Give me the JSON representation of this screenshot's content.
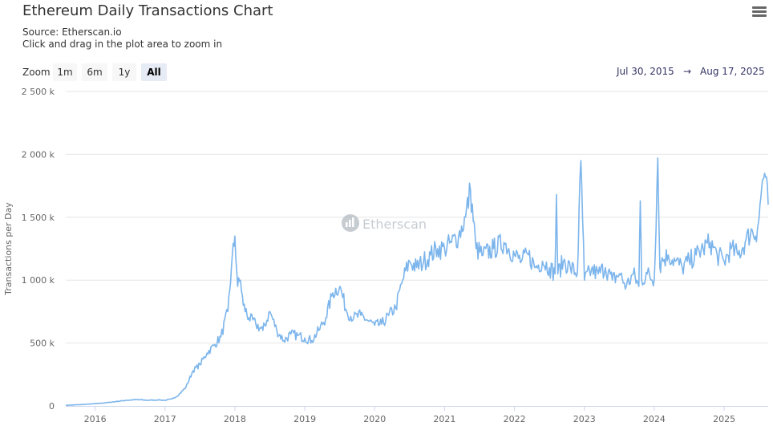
{
  "header": {
    "title": "Ethereum Daily Transactions Chart",
    "source": "Source: Etherscan.io",
    "hint": "Click and drag in the plot area to zoom in"
  },
  "menu": {
    "icon": "hamburger-menu-icon"
  },
  "zoom": {
    "label": "Zoom",
    "buttons": [
      "1m",
      "6m",
      "1y",
      "All"
    ],
    "selected": "All"
  },
  "date_range": {
    "from": "Jul 30, 2015",
    "arrow": "→",
    "to": "Aug 17, 2025"
  },
  "watermark": {
    "text": "Etherscan",
    "icon": "etherscan-logo-icon"
  },
  "colors": {
    "series": "#7cb5ec",
    "grid": "#e6e6e6",
    "axis": "#ccd6eb",
    "selected": "#e6ebf5"
  },
  "chart_data": {
    "type": "line",
    "title": "Ethereum Daily Transactions Chart",
    "xlabel": "",
    "ylabel": "Transactions per Day",
    "xlim": [
      2015.58,
      2025.63
    ],
    "ylim": [
      0,
      2500000
    ],
    "yticks": [
      0,
      500000,
      1000000,
      1500000,
      2000000,
      2500000
    ],
    "ytick_labels": [
      "0",
      "500 k",
      "1 000 k",
      "1 500 k",
      "2 000 k",
      "2 500 k"
    ],
    "xticks": [
      2016,
      2017,
      2018,
      2019,
      2020,
      2021,
      2022,
      2023,
      2024,
      2025
    ],
    "xtick_labels": [
      "2016",
      "2017",
      "2018",
      "2019",
      "2020",
      "2021",
      "2022",
      "2023",
      "2024",
      "2025"
    ],
    "grid": true,
    "legend": "none",
    "series": [
      {
        "name": "Transactions per Day",
        "x": [
          2015.58,
          2015.7,
          2015.85,
          2016.0,
          2016.15,
          2016.3,
          2016.45,
          2016.6,
          2016.75,
          2016.9,
          2017.0,
          2017.1,
          2017.2,
          2017.3,
          2017.4,
          2017.5,
          2017.6,
          2017.7,
          2017.8,
          2017.9,
          2017.95,
          2018.0,
          2018.04,
          2018.08,
          2018.12,
          2018.2,
          2018.3,
          2018.4,
          2018.5,
          2018.6,
          2018.7,
          2018.8,
          2018.9,
          2019.0,
          2019.1,
          2019.2,
          2019.3,
          2019.4,
          2019.5,
          2019.6,
          2019.7,
          2019.8,
          2019.9,
          2020.0,
          2020.1,
          2020.2,
          2020.3,
          2020.4,
          2020.5,
          2020.6,
          2020.7,
          2020.8,
          2020.9,
          2021.0,
          2021.1,
          2021.2,
          2021.3,
          2021.37,
          2021.45,
          2021.55,
          2021.7,
          2021.85,
          2022.0,
          2022.1,
          2022.2,
          2022.3,
          2022.4,
          2022.5,
          2022.58,
          2022.6,
          2022.62,
          2022.7,
          2022.8,
          2022.9,
          2022.95,
          2023.0,
          2023.1,
          2023.2,
          2023.3,
          2023.4,
          2023.5,
          2023.6,
          2023.7,
          2023.78,
          2023.8,
          2023.82,
          2023.9,
          2024.0,
          2024.05,
          2024.08,
          2024.1,
          2024.2,
          2024.3,
          2024.4,
          2024.5,
          2024.6,
          2024.7,
          2024.8,
          2024.9,
          2025.0,
          2025.1,
          2025.2,
          2025.3,
          2025.4,
          2025.45,
          2025.5,
          2025.55,
          2025.58,
          2025.63
        ],
        "values": [
          5000,
          8000,
          12000,
          18000,
          25000,
          35000,
          45000,
          50000,
          45000,
          48000,
          45000,
          55000,
          90000,
          150000,
          280000,
          330000,
          420000,
          480000,
          550000,
          750000,
          1100000,
          1350000,
          950000,
          1000000,
          800000,
          700000,
          650000,
          600000,
          750000,
          600000,
          520000,
          570000,
          560000,
          540000,
          520000,
          600000,
          700000,
          900000,
          950000,
          750000,
          700000,
          720000,
          680000,
          640000,
          650000,
          720000,
          780000,
          1000000,
          1150000,
          1100000,
          1150000,
          1200000,
          1250000,
          1250000,
          1300000,
          1350000,
          1500000,
          1720000,
          1250000,
          1200000,
          1250000,
          1300000,
          1200000,
          1150000,
          1200000,
          1100000,
          1150000,
          1100000,
          1050000,
          1680000,
          1050000,
          1150000,
          1100000,
          1050000,
          1950000,
          1000000,
          1080000,
          1050000,
          1100000,
          1000000,
          1050000,
          950000,
          1050000,
          950000,
          1630000,
          1000000,
          1050000,
          1000000,
          1970000,
          1100000,
          1150000,
          1200000,
          1150000,
          1100000,
          1150000,
          1200000,
          1250000,
          1300000,
          1200000,
          1150000,
          1250000,
          1200000,
          1300000,
          1400000,
          1350000,
          1500000,
          1800000,
          1850000,
          1600000
        ]
      }
    ]
  }
}
